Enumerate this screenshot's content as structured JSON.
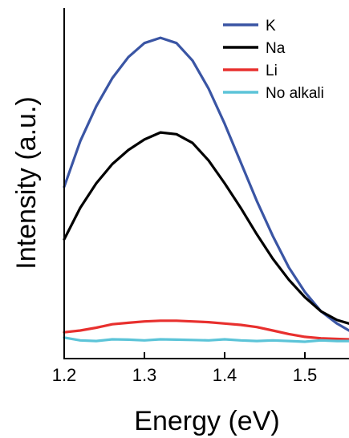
{
  "chart_data": {
    "type": "line",
    "title": "",
    "xlabel": "Energy (eV)",
    "ylabel": "Intensity (a.u.)",
    "xlim": [
      1.2,
      1.555
    ],
    "ylim": [
      0,
      1.0
    ],
    "y_ticks_labeled": false,
    "grid": false,
    "legend_position": "top-right",
    "x_ticks": [
      {
        "value": 1.2,
        "label": "1.2"
      },
      {
        "value": 1.3,
        "label": "1.3"
      },
      {
        "value": 1.4,
        "label": "1.4"
      },
      {
        "value": 1.5,
        "label": "1.5"
      }
    ],
    "series": [
      {
        "name": "K",
        "color": "#3a55a4",
        "x": [
          1.2,
          1.22,
          1.24,
          1.26,
          1.28,
          1.3,
          1.32,
          1.34,
          1.36,
          1.38,
          1.4,
          1.42,
          1.44,
          1.46,
          1.48,
          1.5,
          1.52,
          1.54,
          1.555
        ],
        "y": [
          0.49,
          0.62,
          0.72,
          0.8,
          0.86,
          0.9,
          0.915,
          0.9,
          0.85,
          0.77,
          0.67,
          0.56,
          0.45,
          0.35,
          0.26,
          0.19,
          0.135,
          0.1,
          0.08
        ]
      },
      {
        "name": "Na",
        "color": "#000000",
        "x": [
          1.2,
          1.22,
          1.24,
          1.26,
          1.28,
          1.3,
          1.32,
          1.34,
          1.36,
          1.38,
          1.4,
          1.42,
          1.44,
          1.46,
          1.48,
          1.5,
          1.52,
          1.54,
          1.555
        ],
        "y": [
          0.34,
          0.43,
          0.5,
          0.555,
          0.595,
          0.625,
          0.645,
          0.64,
          0.615,
          0.565,
          0.5,
          0.43,
          0.355,
          0.285,
          0.225,
          0.175,
          0.135,
          0.11,
          0.1
        ]
      },
      {
        "name": "Li",
        "color": "#e8302e",
        "x": [
          1.2,
          1.22,
          1.24,
          1.26,
          1.28,
          1.3,
          1.32,
          1.34,
          1.36,
          1.38,
          1.4,
          1.42,
          1.44,
          1.46,
          1.48,
          1.5,
          1.52,
          1.54,
          1.555
        ],
        "y": [
          0.075,
          0.08,
          0.088,
          0.098,
          0.102,
          0.106,
          0.108,
          0.108,
          0.106,
          0.104,
          0.1,
          0.096,
          0.09,
          0.08,
          0.07,
          0.062,
          0.058,
          0.056,
          0.055
        ]
      },
      {
        "name": "No alkali",
        "color": "#5cc4d8",
        "x": [
          1.2,
          1.22,
          1.24,
          1.26,
          1.28,
          1.3,
          1.32,
          1.34,
          1.36,
          1.38,
          1.4,
          1.42,
          1.44,
          1.46,
          1.48,
          1.5,
          1.52,
          1.54,
          1.555
        ],
        "y": [
          0.06,
          0.052,
          0.05,
          0.055,
          0.054,
          0.052,
          0.055,
          0.054,
          0.053,
          0.052,
          0.055,
          0.052,
          0.05,
          0.052,
          0.05,
          0.048,
          0.052,
          0.05,
          0.05
        ]
      }
    ]
  }
}
